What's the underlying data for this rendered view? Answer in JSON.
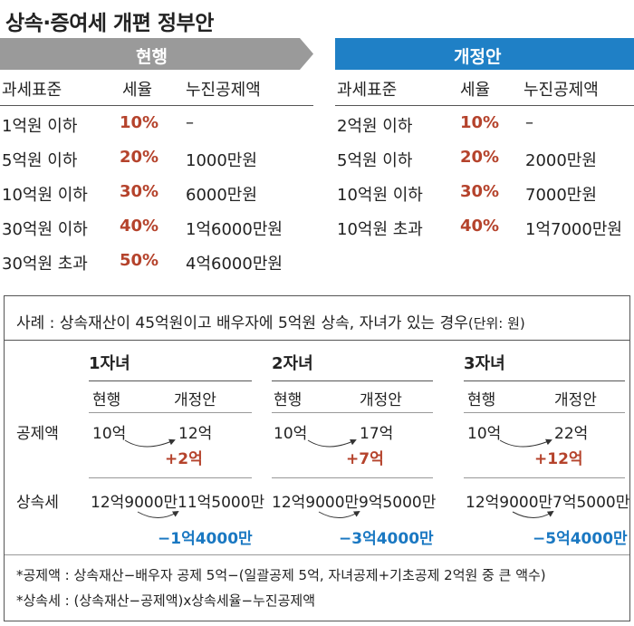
{
  "title": "상속·증여세 개편 정부안",
  "current": {
    "label": "현행",
    "headers": [
      "과세표준",
      "세율",
      "누진공제액"
    ],
    "rows": [
      [
        "1억원 이하",
        "10%",
        "–"
      ],
      [
        "5억원 이하",
        "20%",
        "1000만원"
      ],
      [
        "10억원 이하",
        "30%",
        "6000만원"
      ],
      [
        "30억원 이하",
        "40%",
        "1억6000만원"
      ],
      [
        "30억원 초과",
        "50%",
        "4억6000만원"
      ]
    ]
  },
  "proposal": {
    "label": "개정안",
    "headers": [
      "과세표준",
      "세율",
      "누진공제액"
    ],
    "rows": [
      [
        "2억원 이하",
        "10%",
        "–"
      ],
      [
        "5억원 이하",
        "20%",
        "2000만원"
      ],
      [
        "10억원 이하",
        "30%",
        "7000만원"
      ],
      [
        "10억원 초과",
        "40%",
        "1억7000만원"
      ]
    ]
  },
  "example": {
    "caption": "사례 : 상속재산이 45억원이고 배우자에 5억원 상속, 자녀가 있는 경우",
    "unit": "(단위: 원)",
    "row_labels": [
      "공제액",
      "상속세"
    ],
    "groups": [
      {
        "name": "1자녀",
        "col_current": "현행",
        "col_new": "개정안",
        "deduct_cur": "10억",
        "deduct_new": "12억",
        "deduct_diff": "+2억",
        "tax_cur": "12억9000만",
        "tax_new": "11억5000만",
        "tax_diff": "−1억4000만"
      },
      {
        "name": "2자녀",
        "col_current": "현행",
        "col_new": "개정안",
        "deduct_cur": "10억",
        "deduct_new": "17억",
        "deduct_diff": "+7억",
        "tax_cur": "12억9000만",
        "tax_new": "9억5000만",
        "tax_diff": "−3억4000만"
      },
      {
        "name": "3자녀",
        "col_current": "현행",
        "col_new": "개정안",
        "deduct_cur": "10억",
        "deduct_new": "22억",
        "deduct_diff": "+12억",
        "tax_cur": "12억9000만",
        "tax_new": "7억5000만",
        "tax_diff": "−5억4000만"
      }
    ],
    "notes": [
      "*공제액 : 상속재산−배우자 공제 5억−(일괄공제 5억, 자녀공제+기초공제 2억원 중 큰 액수)",
      "*상속세 : (상속재산−공제액)x상속세율−누진공제액"
    ]
  },
  "colors": {
    "gray_header": "#9a9a9a",
    "blue_header": "#1f80c6",
    "rate_red": "#b5432c",
    "diff_blue": "#1a78c2"
  }
}
